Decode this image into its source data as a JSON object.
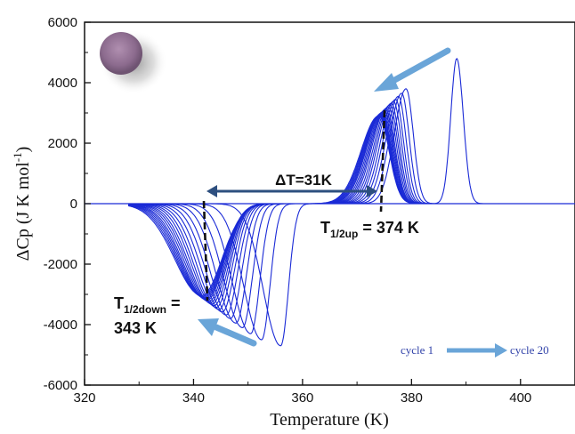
{
  "chart_data": {
    "type": "line",
    "xlabel": "Temperature (K)",
    "ylabel": "ΔCp (J K mol",
    "ylabel_sup": "-1",
    "ylabel_end": ")",
    "xlim": [
      320,
      410
    ],
    "ylim": [
      -6000,
      6000
    ],
    "x_ticks": [
      320,
      340,
      360,
      380,
      400
    ],
    "y_ticks": [
      -6000,
      -4000,
      -2000,
      0,
      2000,
      4000,
      6000
    ],
    "grid": false,
    "line_color": "#1a2ad6",
    "annotation_color": "#3a5f8f",
    "arrow_color": "#6aa5d8",
    "heating_peaks": [
      {
        "center": 388.3,
        "height": 4800
      },
      {
        "center": 379.0,
        "height": 3800
      },
      {
        "center": 378.2,
        "height": 3650
      },
      {
        "center": 377.6,
        "height": 3550
      },
      {
        "center": 377.1,
        "height": 3450
      },
      {
        "center": 376.7,
        "height": 3380
      },
      {
        "center": 376.3,
        "height": 3320
      },
      {
        "center": 376.0,
        "height": 3260
      },
      {
        "center": 375.7,
        "height": 3200
      },
      {
        "center": 375.4,
        "height": 3150
      },
      {
        "center": 375.2,
        "height": 3110
      },
      {
        "center": 375.0,
        "height": 3070
      },
      {
        "center": 374.8,
        "height": 3040
      },
      {
        "center": 374.6,
        "height": 3010
      },
      {
        "center": 374.5,
        "height": 2990
      },
      {
        "center": 374.4,
        "height": 2970
      },
      {
        "center": 374.3,
        "height": 2950
      },
      {
        "center": 374.2,
        "height": 2930
      },
      {
        "center": 374.1,
        "height": 2910
      },
      {
        "center": 374.0,
        "height": 2900
      }
    ],
    "cooling_peaks": [
      {
        "center": 356.0,
        "depth": -4700
      },
      {
        "center": 352.5,
        "depth": -4500
      },
      {
        "center": 350.5,
        "depth": -4300
      },
      {
        "center": 349.0,
        "depth": -4100
      },
      {
        "center": 347.8,
        "depth": -3950
      },
      {
        "center": 346.8,
        "depth": -3800
      },
      {
        "center": 346.0,
        "depth": -3680
      },
      {
        "center": 345.3,
        "depth": -3580
      },
      {
        "center": 344.7,
        "depth": -3500
      },
      {
        "center": 344.2,
        "depth": -3430
      },
      {
        "center": 343.8,
        "depth": -3370
      },
      {
        "center": 343.4,
        "depth": -3320
      },
      {
        "center": 343.1,
        "depth": -3270
      },
      {
        "center": 342.8,
        "depth": -3230
      },
      {
        "center": 342.5,
        "depth": -3190
      },
      {
        "center": 342.3,
        "depth": -3160
      },
      {
        "center": 342.1,
        "depth": -3130
      },
      {
        "center": 341.9,
        "depth": -3100
      },
      {
        "center": 341.7,
        "depth": -3070
      },
      {
        "center": 341.5,
        "depth": -3040
      }
    ],
    "annotations": {
      "delta_t": "ΔT=31K",
      "t_half_up": "374 K",
      "t_half_down": "343 K",
      "t_label": "T",
      "sub_up": "1/2up",
      "sub_down": "1/2down",
      "eq_up": " = ",
      "eq_down": " =",
      "legend_start": "cycle 1",
      "legend_end": "cycle 20"
    }
  }
}
